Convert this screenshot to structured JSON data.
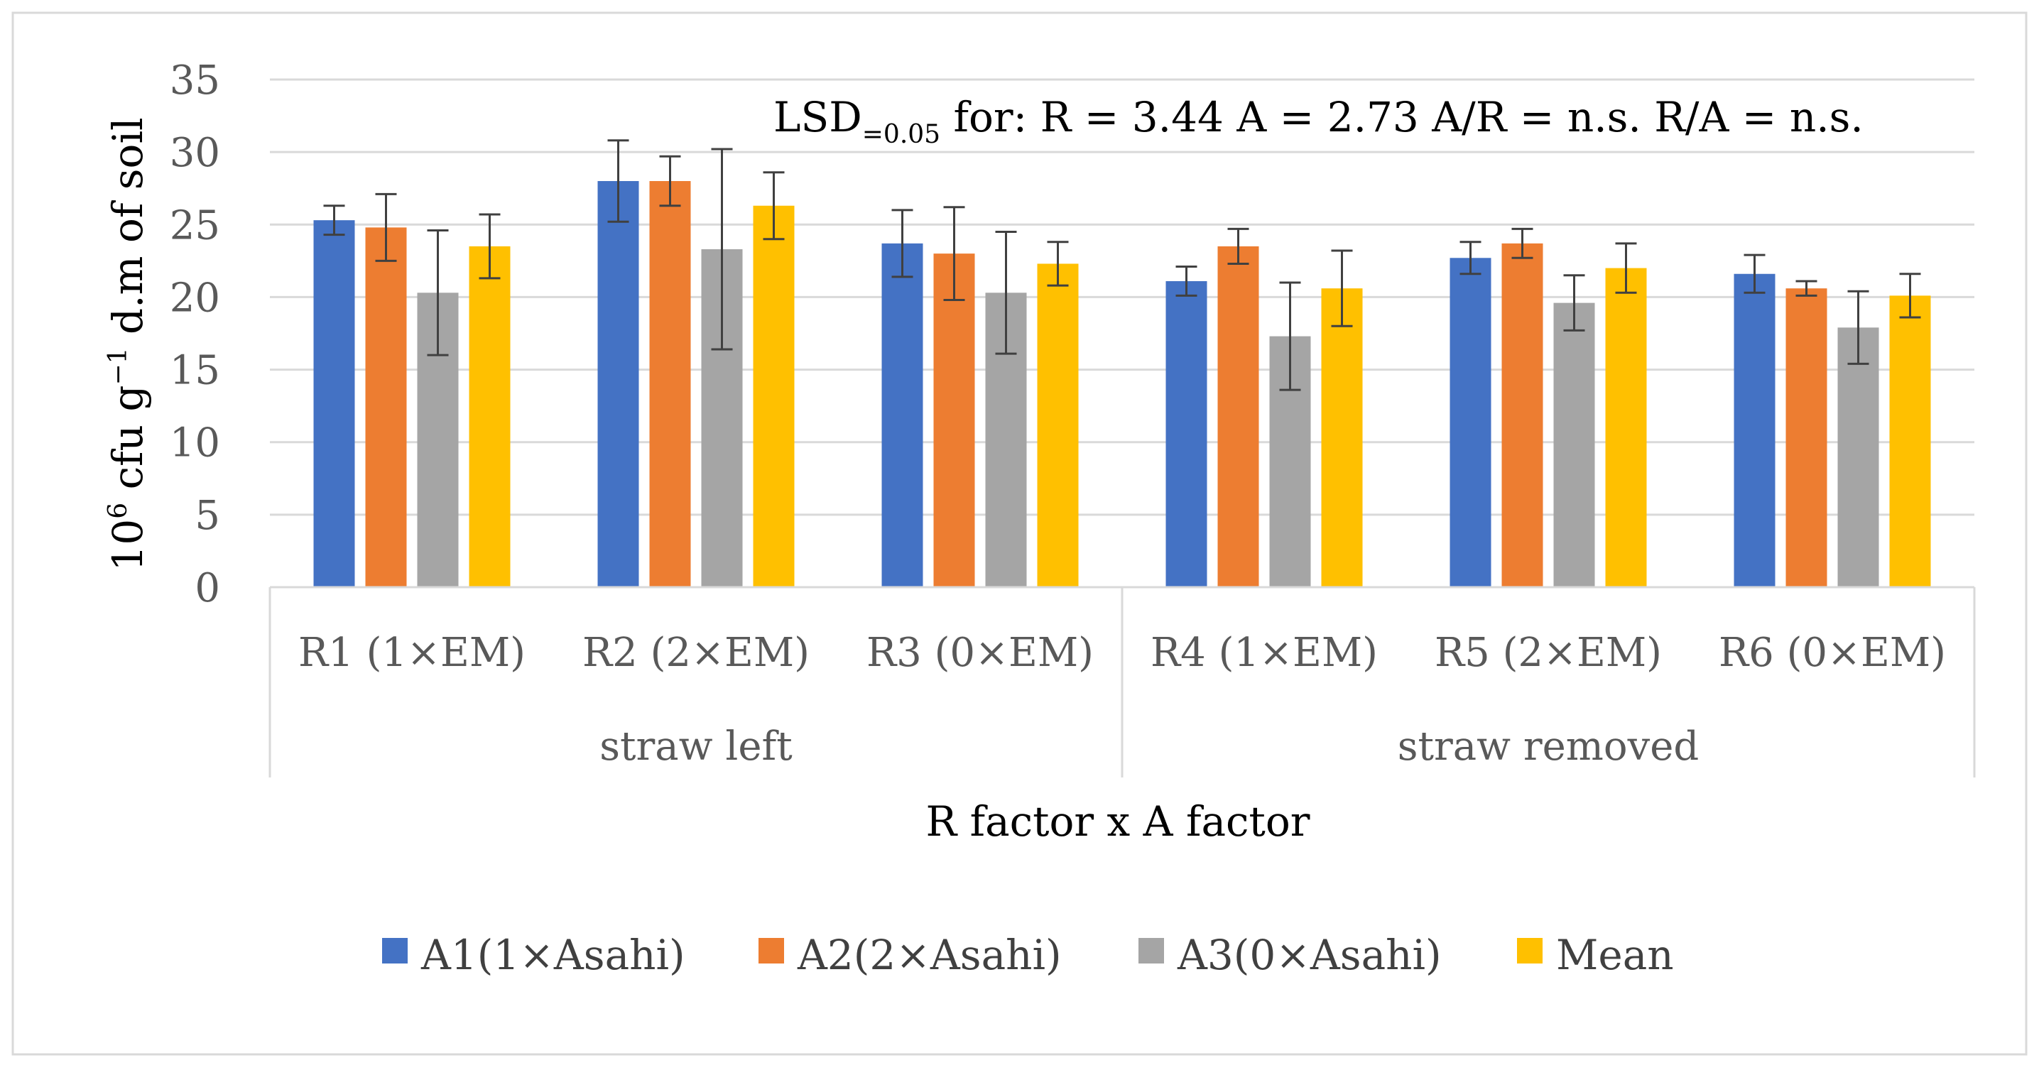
{
  "chart_data": {
    "type": "bar",
    "title": "",
    "annotation": {
      "prefix": "LSD",
      "subscript": "=0.05",
      "rest": " for:  R = 3.44   A = 2.73   A/R = n.s.  R/A = n.s."
    },
    "ylabel": {
      "base": "10",
      "exp1": "6",
      "mid": " cfu g",
      "exp2": "−1",
      "tail": " d.m of soil"
    },
    "xlabel": "R factor x A factor",
    "ylim": [
      0,
      35
    ],
    "yticks": [
      "0",
      "5",
      "10",
      "15",
      "20",
      "25",
      "30",
      "35"
    ],
    "categories": [
      "R1 (1×EM)",
      "R2 (2×EM)",
      "R3 (0×EM)",
      "R4 (1×EM)",
      "R5 (2×EM)",
      "R6 (0×EM)"
    ],
    "groups": [
      {
        "label": "straw left",
        "span": 3
      },
      {
        "label": "straw removed",
        "span": 3
      }
    ],
    "series": [
      {
        "name": "A1(1×Asahi)",
        "color": "#4472C4",
        "values": [
          25.3,
          28.0,
          23.7,
          21.1,
          22.7,
          21.6
        ],
        "errors": [
          1.0,
          2.8,
          2.3,
          1.0,
          1.1,
          1.3
        ]
      },
      {
        "name": "A2(2×Asahi)",
        "color": "#ED7D31",
        "values": [
          24.8,
          28.0,
          23.0,
          23.5,
          23.7,
          20.6
        ],
        "errors": [
          2.3,
          1.7,
          3.2,
          1.2,
          1.0,
          0.5
        ]
      },
      {
        "name": "A3(0×Asahi)",
        "color": "#A5A5A5",
        "values": [
          20.3,
          23.3,
          20.3,
          17.3,
          19.6,
          17.9
        ],
        "errors": [
          4.3,
          6.9,
          4.2,
          3.7,
          1.9,
          2.5
        ]
      },
      {
        "name": "Mean",
        "color": "#FFC000",
        "values": [
          23.5,
          26.3,
          22.3,
          20.6,
          22.0,
          20.1
        ],
        "errors": [
          2.2,
          2.3,
          1.5,
          2.6,
          1.7,
          1.5
        ]
      }
    ],
    "grid": true,
    "legend": "bottom-center"
  }
}
